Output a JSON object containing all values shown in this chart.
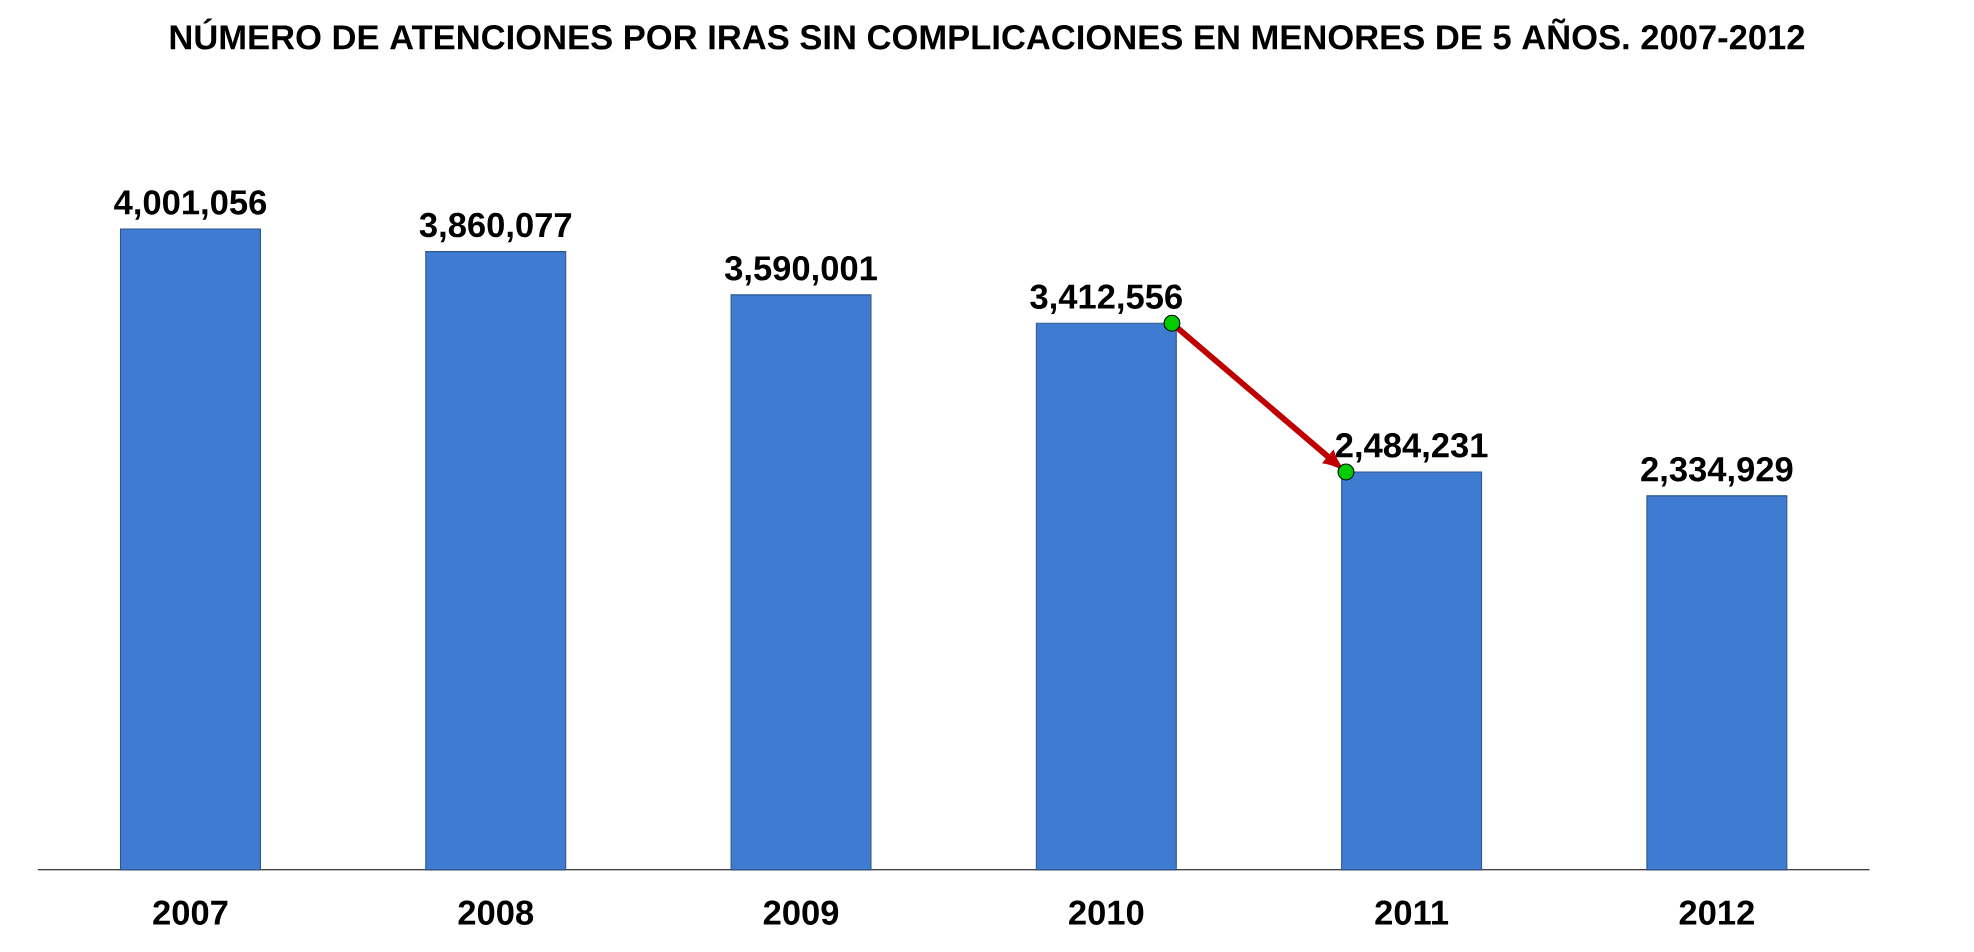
{
  "chart_data": {
    "type": "bar",
    "title": "NÚMERO DE ATENCIONES POR IRAS SIN COMPLICACIONES EN MENORES DE 5 AÑOS. 2007-2012",
    "categories": [
      "2007",
      "2008",
      "2009",
      "2010",
      "2011",
      "2012"
    ],
    "values": [
      4001056,
      3860077,
      3590001,
      3412556,
      2484231,
      2334929
    ],
    "value_labels": [
      "4,001,056",
      "3,860,077",
      "3,590,001",
      "3,412,556",
      "2,484,231",
      "2,334,929"
    ],
    "color": "#3f7bd0"
  }
}
